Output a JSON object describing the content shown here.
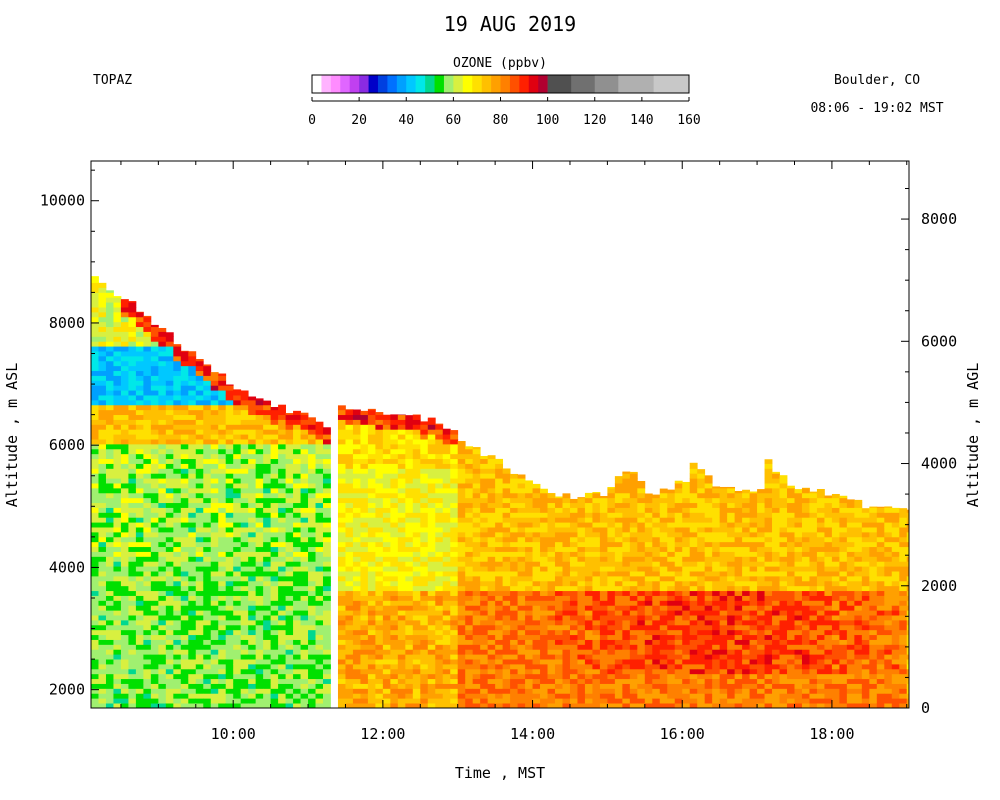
{
  "header": {
    "date": "19 AUG 2019",
    "instrument": "TOPAZ",
    "location": "Boulder, CO",
    "time_range": "08:06 - 19:02 MST"
  },
  "colorbar": {
    "title": "OZONE (ppbv)",
    "min": 0,
    "max": 160,
    "tick_values": [
      0,
      20,
      40,
      60,
      80,
      100,
      120,
      140,
      160
    ],
    "tick_labels": [
      "0",
      "20",
      "40",
      "60",
      "80",
      "100",
      "120",
      "140",
      "160"
    ],
    "bins": [
      {
        "from": 0,
        "to": 4,
        "color": "#ffffff"
      },
      {
        "from": 4,
        "to": 8,
        "color": "#ffb3ff"
      },
      {
        "from": 8,
        "to": 12,
        "color": "#ff8cff"
      },
      {
        "from": 12,
        "to": 16,
        "color": "#e066ff"
      },
      {
        "from": 16,
        "to": 20,
        "color": "#c040f0"
      },
      {
        "from": 20,
        "to": 24,
        "color": "#8a2be2"
      },
      {
        "from": 24,
        "to": 28,
        "color": "#0000c8"
      },
      {
        "from": 28,
        "to": 32,
        "color": "#0040e0"
      },
      {
        "from": 32,
        "to": 36,
        "color": "#0070ff"
      },
      {
        "from": 36,
        "to": 40,
        "color": "#00a0ff"
      },
      {
        "from": 40,
        "to": 44,
        "color": "#00c8ff"
      },
      {
        "from": 44,
        "to": 48,
        "color": "#00e8e8"
      },
      {
        "from": 48,
        "to": 52,
        "color": "#00d890"
      },
      {
        "from": 52,
        "to": 56,
        "color": "#00e000"
      },
      {
        "from": 56,
        "to": 60,
        "color": "#a0f070"
      },
      {
        "from": 60,
        "to": 64,
        "color": "#d8f040"
      },
      {
        "from": 64,
        "to": 68,
        "color": "#ffff00"
      },
      {
        "from": 68,
        "to": 72,
        "color": "#ffe000"
      },
      {
        "from": 72,
        "to": 76,
        "color": "#ffc000"
      },
      {
        "from": 76,
        "to": 80,
        "color": "#ffa000"
      },
      {
        "from": 80,
        "to": 84,
        "color": "#ff8000"
      },
      {
        "from": 84,
        "to": 88,
        "color": "#ff5000"
      },
      {
        "from": 88,
        "to": 92,
        "color": "#ff2000"
      },
      {
        "from": 92,
        "to": 96,
        "color": "#e00010"
      },
      {
        "from": 96,
        "to": 100,
        "color": "#b00030"
      },
      {
        "from": 100,
        "to": 110,
        "color": "#505050"
      },
      {
        "from": 110,
        "to": 120,
        "color": "#707070"
      },
      {
        "from": 120,
        "to": 130,
        "color": "#909090"
      },
      {
        "from": 130,
        "to": 145,
        "color": "#b0b0b0"
      },
      {
        "from": 145,
        "to": 160,
        "color": "#c8c8c8"
      }
    ]
  },
  "chart_data": {
    "type": "heatmap",
    "title": "19 AUG 2019",
    "variable": "OZONE (ppbv)",
    "xlabel": "Time , MST",
    "ylabel_left": "Altitude , m ASL",
    "ylabel_right": "Altitude , m AGL",
    "xlim_hours": [
      8.1,
      19.03
    ],
    "ylim_asl": [
      1700,
      10650
    ],
    "ylim_agl": [
      0,
      8950
    ],
    "x_ticks": [
      {
        "value": 10,
        "label": "10:00"
      },
      {
        "value": 12,
        "label": "12:00"
      },
      {
        "value": 14,
        "label": "14:00"
      },
      {
        "value": 16,
        "label": "16:00"
      },
      {
        "value": 18,
        "label": "18:00"
      }
    ],
    "y_ticks_left": [
      {
        "value": 2000,
        "label": "2000"
      },
      {
        "value": 4000,
        "label": "4000"
      },
      {
        "value": 6000,
        "label": "6000"
      },
      {
        "value": 8000,
        "label": "8000"
      },
      {
        "value": 10000,
        "label": "10000"
      }
    ],
    "y_ticks_right": [
      {
        "value": 0,
        "label": "0"
      },
      {
        "value": 2000,
        "label": "2000"
      },
      {
        "value": 4000,
        "label": "4000"
      },
      {
        "value": 6000,
        "label": "6000"
      },
      {
        "value": 8000,
        "label": "8000"
      }
    ],
    "data_gap": [
      11.3,
      11.4
    ],
    "profile_top_asl": [
      {
        "t": 8.1,
        "alt": 8750
      },
      {
        "t": 8.5,
        "alt": 8450
      },
      {
        "t": 9.0,
        "alt": 7950
      },
      {
        "t": 9.5,
        "alt": 7450
      },
      {
        "t": 10.0,
        "alt": 7000
      },
      {
        "t": 10.5,
        "alt": 6700
      },
      {
        "t": 11.0,
        "alt": 6450
      },
      {
        "t": 11.3,
        "alt": 6300
      },
      {
        "t": 11.4,
        "alt": 6650
      },
      {
        "t": 12.0,
        "alt": 6550
      },
      {
        "t": 12.5,
        "alt": 6450
      },
      {
        "t": 12.9,
        "alt": 6300
      },
      {
        "t": 13.2,
        "alt": 5950
      },
      {
        "t": 13.6,
        "alt": 5700
      },
      {
        "t": 14.0,
        "alt": 5350
      },
      {
        "t": 14.5,
        "alt": 5150
      },
      {
        "t": 15.0,
        "alt": 5200
      },
      {
        "t": 15.3,
        "alt": 5700
      },
      {
        "t": 15.6,
        "alt": 5150
      },
      {
        "t": 16.0,
        "alt": 5400
      },
      {
        "t": 16.1,
        "alt": 5800
      },
      {
        "t": 16.5,
        "alt": 5300
      },
      {
        "t": 17.0,
        "alt": 5250
      },
      {
        "t": 17.1,
        "alt": 5800
      },
      {
        "t": 17.5,
        "alt": 5300
      },
      {
        "t": 18.0,
        "alt": 5200
      },
      {
        "t": 18.5,
        "alt": 5000
      },
      {
        "t": 19.03,
        "alt": 4900
      }
    ],
    "regions": [
      {
        "t_start": 8.1,
        "t_end": 11.3,
        "alt_from": 1700,
        "alt_to": 4200,
        "ozone": 58
      },
      {
        "t_start": 8.1,
        "t_end": 11.3,
        "alt_from": 4200,
        "alt_to": 6000,
        "ozone": 60
      },
      {
        "t_start": 8.1,
        "t_end": 11.3,
        "alt_from": 6000,
        "alt_to": 6700,
        "ozone": 74
      },
      {
        "t_start": 8.1,
        "t_end": 11.0,
        "alt_from": 6700,
        "alt_to": 7600,
        "ozone": 42
      },
      {
        "t_start": 8.1,
        "t_end": 9.5,
        "alt_from": 7600,
        "alt_to": 8750,
        "ozone": 64
      },
      {
        "t_start": 11.4,
        "t_end": 13.0,
        "alt_from": 1700,
        "alt_to": 3600,
        "ozone": 76
      },
      {
        "t_start": 11.4,
        "t_end": 13.0,
        "alt_from": 3600,
        "alt_to": 5600,
        "ozone": 66
      },
      {
        "t_start": 11.4,
        "t_end": 13.0,
        "alt_from": 5600,
        "alt_to": 6650,
        "ozone": 70
      },
      {
        "t_start": 13.0,
        "t_end": 19.03,
        "alt_from": 1700,
        "alt_to": 3600,
        "ozone": 82
      },
      {
        "t_start": 13.0,
        "t_end": 19.03,
        "alt_from": 3600,
        "alt_to": 5800,
        "ozone": 74
      }
    ]
  }
}
